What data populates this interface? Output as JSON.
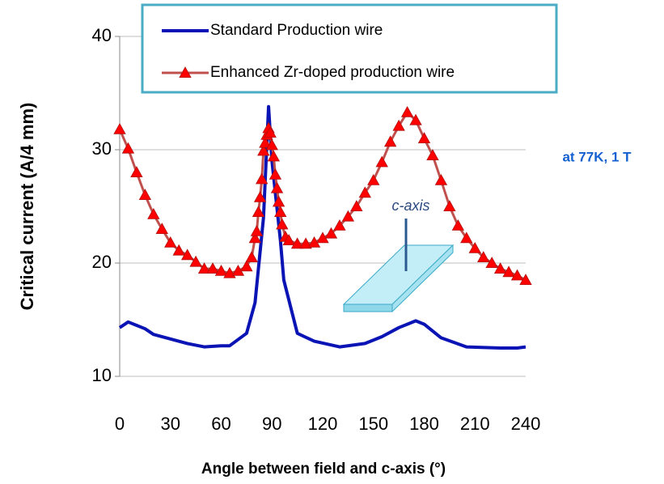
{
  "chart_data": {
    "type": "line",
    "xlabel": "Angle between field and c-axis (°)",
    "ylabel": "Critical current (A/4 mm)",
    "annotations": [
      "at 77K, 1 T",
      "c-axis"
    ],
    "xlim": [
      0,
      240
    ],
    "xticks": [
      0,
      30,
      60,
      90,
      120,
      150,
      180,
      210,
      240
    ],
    "ylim": [
      10,
      40
    ],
    "yticks": [
      10,
      20,
      30,
      40
    ],
    "grid": true,
    "series": [
      {
        "name": "Standard Production wire",
        "color": "#0a14b4",
        "marker": "none",
        "x": [
          0,
          5,
          10,
          15,
          20,
          30,
          40,
          50,
          60,
          65,
          75,
          80,
          85,
          88,
          90,
          95,
          97,
          105,
          115,
          130,
          145,
          155,
          165,
          175,
          180,
          190,
          205,
          225,
          235,
          240
        ],
        "values": [
          14.3,
          14.8,
          14.5,
          14.2,
          13.7,
          13.3,
          12.9,
          12.6,
          12.7,
          12.7,
          13.8,
          16.5,
          24,
          33.8,
          29,
          22,
          18.5,
          13.8,
          13.1,
          12.6,
          12.9,
          13.5,
          14.3,
          14.9,
          14.6,
          13.4,
          12.6,
          12.5,
          12.5,
          12.6
        ]
      },
      {
        "name": "Enhanced Zr-doped production wire",
        "color": "#c0504d",
        "marker": "triangle",
        "marker_color": "#ff0000",
        "x": [
          0,
          5,
          10,
          15,
          20,
          25,
          30,
          35,
          40,
          45,
          50,
          55,
          60,
          65,
          70,
          75,
          78,
          80,
          81,
          82,
          83,
          84,
          85,
          86,
          87,
          88,
          89,
          90,
          91,
          92,
          93,
          94,
          95,
          96,
          98,
          100,
          105,
          110,
          115,
          120,
          125,
          130,
          135,
          140,
          145,
          150,
          155,
          160,
          165,
          170,
          175,
          180,
          185,
          190,
          195,
          200,
          205,
          210,
          215,
          220,
          225,
          230,
          235,
          240
        ],
        "values": [
          31.8,
          30.1,
          28,
          26,
          24.3,
          23,
          21.8,
          21.1,
          20.7,
          20.1,
          19.5,
          19.5,
          19.3,
          19.1,
          19.3,
          19.7,
          20.5,
          22.2,
          22.8,
          24.5,
          25.8,
          27.4,
          29.9,
          30.6,
          31.3,
          31.9,
          31.5,
          30.4,
          29.4,
          27.8,
          26.6,
          25.4,
          24.5,
          23.4,
          22.3,
          22,
          21.7,
          21.7,
          21.8,
          22.2,
          22.6,
          23.3,
          24.1,
          25,
          26.2,
          27.3,
          28.9,
          30.7,
          32.1,
          33.3,
          32.6,
          31,
          29.5,
          27.3,
          25,
          23.3,
          22.2,
          21.3,
          20.5,
          20,
          19.5,
          19.2,
          18.9,
          18.5
        ]
      }
    ]
  }
}
